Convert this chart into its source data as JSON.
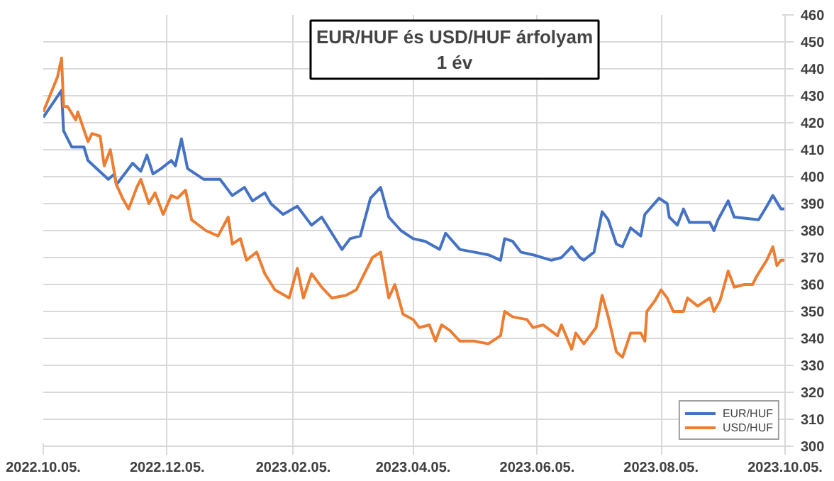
{
  "chart_data": {
    "type": "line",
    "title": "EUR/HUF és USD/HUF árfolyam\n1 év",
    "xlim": [
      "2022-10-05",
      "2023-10-05"
    ],
    "xticks": [
      {
        "value": "2022-10-05",
        "label": "2022.10.05."
      },
      {
        "value": "2022-12-05",
        "label": "2022.12.05."
      },
      {
        "value": "2023-02-05",
        "label": "2023.02.05."
      },
      {
        "value": "2023-04-05",
        "label": "2023.04.05."
      },
      {
        "value": "2023-06-05",
        "label": "2023.06.05."
      },
      {
        "value": "2023-08-05",
        "label": "2023.08.05."
      },
      {
        "value": "2023-10-05",
        "label": "2023.10.05."
      }
    ],
    "ylim": [
      300,
      460
    ],
    "yticks": [
      300,
      310,
      320,
      330,
      340,
      350,
      360,
      370,
      380,
      390,
      400,
      410,
      420,
      430,
      440,
      450,
      460
    ],
    "grid": true,
    "legend": "bottom right",
    "series": [
      {
        "name": "EUR/HUF",
        "color": "#4472c4",
        "x": [
          "2022-10-05",
          "2022-10-14",
          "2022-10-15",
          "2022-10-19",
          "2022-10-25",
          "2022-10-27",
          "2022-11-06",
          "2022-11-09",
          "2022-11-10",
          "2022-11-18",
          "2022-11-22",
          "2022-11-25",
          "2022-11-28",
          "2022-12-02",
          "2022-12-07",
          "2022-12-09",
          "2022-12-12",
          "2022-12-15",
          "2022-12-23",
          "2022-12-31",
          "2023-01-06",
          "2023-01-12",
          "2023-01-16",
          "2023-01-22",
          "2023-01-25",
          "2023-01-31",
          "2023-02-07",
          "2023-02-14",
          "2023-02-19",
          "2023-02-24",
          "2023-03-01",
          "2023-03-05",
          "2023-03-10",
          "2023-03-15",
          "2023-03-20",
          "2023-03-24",
          "2023-03-30",
          "2023-04-05",
          "2023-04-11",
          "2023-04-18",
          "2023-04-21",
          "2023-04-28",
          "2023-05-05",
          "2023-05-12",
          "2023-05-18",
          "2023-05-20",
          "2023-05-24",
          "2023-05-28",
          "2023-06-03",
          "2023-06-12",
          "2023-06-17",
          "2023-06-22",
          "2023-06-26",
          "2023-06-28",
          "2023-07-03",
          "2023-07-07",
          "2023-07-10",
          "2023-07-14",
          "2023-07-17",
          "2023-07-21",
          "2023-07-26",
          "2023-07-28",
          "2023-08-04",
          "2023-08-08",
          "2023-08-09",
          "2023-08-13",
          "2023-08-16",
          "2023-08-19",
          "2023-08-29",
          "2023-08-31",
          "2023-09-02",
          "2023-09-07",
          "2023-09-10",
          "2023-09-22",
          "2023-09-26",
          "2023-09-29",
          "2023-10-03",
          "2023-10-05"
        ],
        "values": [
          422,
          432,
          417,
          411,
          411,
          406,
          399,
          401,
          397,
          405,
          402,
          408,
          401,
          403,
          406,
          404,
          414,
          403,
          399,
          399,
          393,
          396,
          391,
          394,
          390,
          386,
          389,
          382,
          385,
          379,
          373,
          377,
          378,
          392,
          396,
          385,
          380,
          377,
          376,
          373,
          379,
          373,
          372,
          371,
          369,
          377,
          376,
          372,
          371,
          369,
          370,
          374,
          370,
          369,
          372,
          387,
          384,
          375,
          374,
          381,
          378,
          386,
          392,
          390,
          385,
          382,
          388,
          383,
          383,
          380,
          384,
          391,
          385,
          384,
          389,
          393,
          388,
          388
        ]
      },
      {
        "name": "USD/HUF",
        "color": "#ed7d31",
        "x": [
          "2022-10-05",
          "2022-10-12",
          "2022-10-14",
          "2022-10-15",
          "2022-10-17",
          "2022-10-21",
          "2022-10-22",
          "2022-10-27",
          "2022-10-29",
          "2022-11-02",
          "2022-11-04",
          "2022-11-07",
          "2022-11-10",
          "2022-11-13",
          "2022-11-16",
          "2022-11-20",
          "2022-11-22",
          "2022-11-26",
          "2022-11-29",
          "2022-12-03",
          "2022-12-07",
          "2022-12-10",
          "2022-12-14",
          "2022-12-17",
          "2022-12-24",
          "2022-12-30",
          "2023-01-04",
          "2023-01-06",
          "2023-01-10",
          "2023-01-13",
          "2023-01-18",
          "2023-01-22",
          "2023-01-27",
          "2023-02-03",
          "2023-02-07",
          "2023-02-10",
          "2023-02-14",
          "2023-02-19",
          "2023-02-24",
          "2023-03-03",
          "2023-03-08",
          "2023-03-16",
          "2023-03-20",
          "2023-03-24",
          "2023-03-27",
          "2023-03-31",
          "2023-04-05",
          "2023-04-08",
          "2023-04-13",
          "2023-04-16",
          "2023-04-19",
          "2023-04-23",
          "2023-04-28",
          "2023-05-05",
          "2023-05-12",
          "2023-05-18",
          "2023-05-20",
          "2023-05-24",
          "2023-05-31",
          "2023-06-03",
          "2023-06-08",
          "2023-06-15",
          "2023-06-17",
          "2023-06-22",
          "2023-06-24",
          "2023-06-28",
          "2023-07-04",
          "2023-07-07",
          "2023-07-10",
          "2023-07-14",
          "2023-07-17",
          "2023-07-21",
          "2023-07-26",
          "2023-07-28",
          "2023-07-29",
          "2023-08-02",
          "2023-08-05",
          "2023-08-08",
          "2023-08-11",
          "2023-08-16",
          "2023-08-18",
          "2023-08-23",
          "2023-08-29",
          "2023-08-31",
          "2023-09-03",
          "2023-09-07",
          "2023-09-10",
          "2023-09-15",
          "2023-09-19",
          "2023-09-21",
          "2023-09-26",
          "2023-09-29",
          "2023-10-01",
          "2023-10-03",
          "2023-10-05"
        ],
        "values": [
          424,
          437,
          444,
          426,
          426,
          421,
          424,
          413,
          416,
          415,
          404,
          410,
          397,
          392,
          388,
          396,
          399,
          390,
          394,
          386,
          393,
          392,
          395,
          384,
          380,
          378,
          385,
          375,
          377,
          369,
          372,
          364,
          358,
          355,
          366,
          355,
          364,
          359,
          355,
          356,
          358,
          370,
          372,
          355,
          360,
          349,
          347,
          344,
          345,
          339,
          345,
          343,
          339,
          339,
          338,
          341,
          350,
          348,
          347,
          344,
          345,
          341,
          345,
          336,
          342,
          338,
          344,
          356,
          348,
          335,
          333,
          342,
          342,
          339,
          350,
          354,
          358,
          355,
          350,
          350,
          355,
          352,
          355,
          350,
          354,
          365,
          359,
          360,
          360,
          363,
          369,
          374,
          367,
          369,
          369
        ]
      }
    ]
  }
}
